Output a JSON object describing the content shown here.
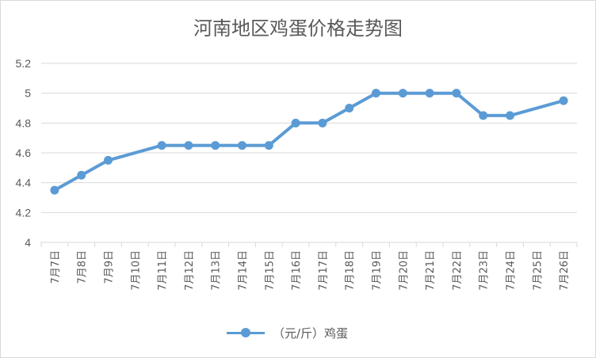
{
  "chart_data": {
    "type": "line",
    "title": "河南地区鸡蛋价格走势图",
    "xlabel": "",
    "ylabel": "",
    "categories": [
      "7月7日",
      "7月8日",
      "7月9日",
      "7月10日",
      "7月11日",
      "7月12日",
      "7月13日",
      "7月14日",
      "7月15日",
      "7月16日",
      "7月17日",
      "7月18日",
      "7月19日",
      "7月20日",
      "7月21日",
      "7月22日",
      "7月23日",
      "7月24日",
      "7月25日",
      "7月26日"
    ],
    "series": [
      {
        "name": "（元/斤）鸡蛋",
        "values": [
          4.35,
          4.45,
          4.55,
          null,
          4.65,
          4.65,
          4.65,
          4.65,
          4.65,
          4.8,
          4.8,
          4.9,
          5.0,
          5.0,
          5.0,
          5.0,
          4.85,
          4.85,
          null,
          4.95
        ]
      }
    ],
    "ylim": [
      4,
      5.2
    ],
    "yticks": [
      "4",
      "4.2",
      "4.4",
      "4.6",
      "4.8",
      "5",
      "5.2"
    ],
    "ytick_values": [
      4,
      4.2,
      4.4,
      4.6,
      4.8,
      5.0,
      5.2
    ],
    "grid": true,
    "legend_position": "bottom",
    "colors": {
      "line": "#5b9bd5",
      "grid": "#d9d9d9",
      "text": "#595959"
    }
  }
}
